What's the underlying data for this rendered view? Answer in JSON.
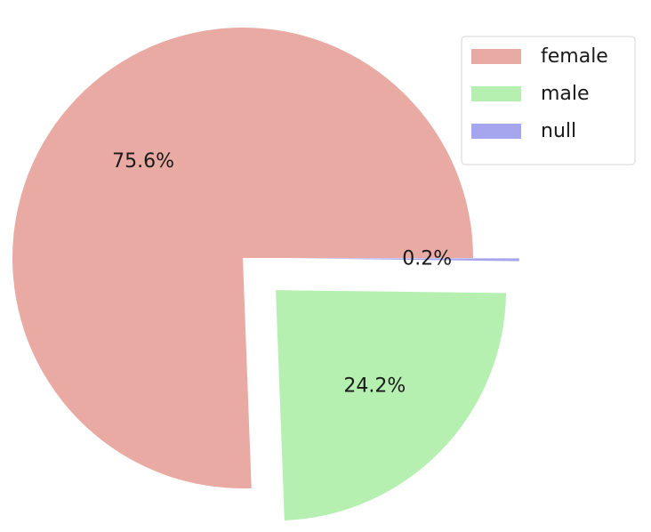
{
  "chart_data": {
    "type": "pie",
    "categories": [
      "female",
      "male",
      "null"
    ],
    "values": [
      75.6,
      24.2,
      0.2
    ],
    "value_labels": [
      "75.6%",
      "24.2%",
      "0.2%"
    ],
    "colors": [
      "#e8aaa3",
      "#b6f0b1",
      "#a6a6ee"
    ],
    "explode": [
      0,
      0.2,
      0.2
    ],
    "legend": "upper right"
  }
}
